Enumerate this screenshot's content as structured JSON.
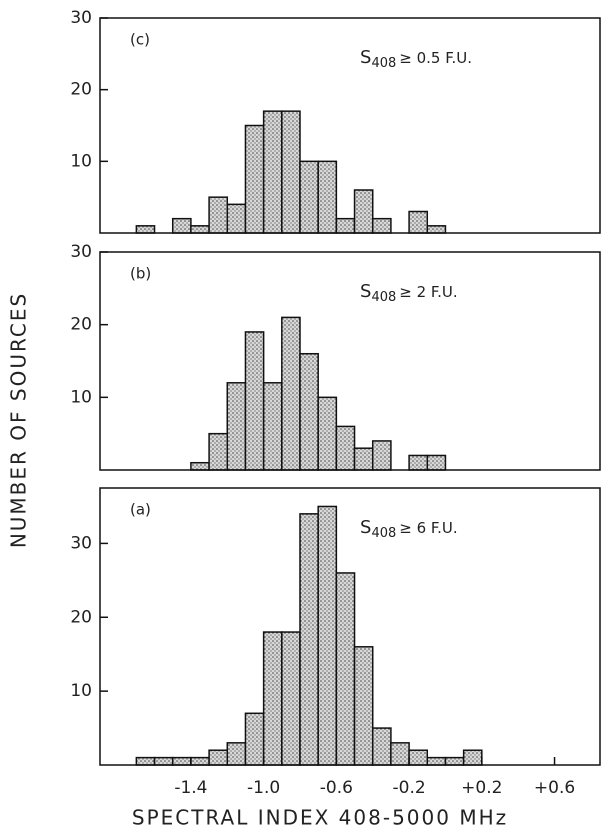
{
  "chart_data": [
    {
      "type": "histogram",
      "panel": "(c)",
      "annotation": {
        "symbol": "S",
        "subscript": "408",
        "text": "≥ 0.5 F.U."
      },
      "bins": [
        -1.7,
        -1.6,
        -1.5,
        -1.4,
        -1.3,
        -1.2,
        -1.1,
        -1.0,
        -0.9,
        -0.8,
        -0.7,
        -0.6,
        -0.5,
        -0.4,
        -0.3,
        -0.2,
        -0.1,
        0.0
      ],
      "counts": [
        1,
        0,
        2,
        1,
        5,
        4,
        15,
        17,
        17,
        10,
        10,
        2,
        6,
        2,
        0,
        3,
        1
      ],
      "xlim": [
        -1.9,
        0.85
      ],
      "ylim": [
        0,
        30
      ],
      "yticks": [
        10,
        20,
        30
      ],
      "color": "#444"
    },
    {
      "type": "histogram",
      "panel": "(b)",
      "ylabel": "NUMBER OF SOURCES",
      "annotation": {
        "symbol": "S",
        "subscript": "408",
        "text": "≥ 2 F.U."
      },
      "bins": [
        -1.4,
        -1.3,
        -1.2,
        -1.1,
        -1.0,
        -0.9,
        -0.8,
        -0.7,
        -0.6,
        -0.5,
        -0.4,
        -0.3,
        -0.2,
        -0.1,
        0.0
      ],
      "counts": [
        1,
        5,
        12,
        19,
        12,
        21,
        16,
        10,
        6,
        3,
        4,
        0,
        2,
        2
      ],
      "xlim": [
        -1.9,
        0.85
      ],
      "ylim": [
        0,
        30
      ],
      "yticks": [
        10,
        20,
        30
      ],
      "color": "#444"
    },
    {
      "type": "histogram",
      "panel": "(a)",
      "xlabel": "SPECTRAL INDEX  408-5000 MHz",
      "annotation": {
        "symbol": "S",
        "subscript": "408",
        "text": "≥ 6 F.U."
      },
      "bins": [
        -1.7,
        -1.6,
        -1.5,
        -1.4,
        -1.3,
        -1.2,
        -1.1,
        -1.0,
        -0.9,
        -0.8,
        -0.7,
        -0.6,
        -0.5,
        -0.4,
        -0.3,
        -0.2,
        -0.1,
        0.0,
        0.1,
        0.2
      ],
      "counts": [
        1,
        1,
        1,
        1,
        2,
        3,
        7,
        18,
        18,
        34,
        35,
        26,
        16,
        5,
        3,
        2,
        1,
        1,
        2
      ],
      "xlim": [
        -1.9,
        0.85
      ],
      "ylim": [
        0,
        37.5
      ],
      "yticks": [
        10,
        20,
        30
      ],
      "color": "#444",
      "xticks": [
        -1.4,
        {
          "value": -1.0,
          "label": "-1.0"
        },
        -0.6,
        -0.2,
        {
          "value": 0.2,
          "label": "+0.2"
        },
        {
          "value": 0.6,
          "label": "+0.6"
        }
      ]
    }
  ]
}
